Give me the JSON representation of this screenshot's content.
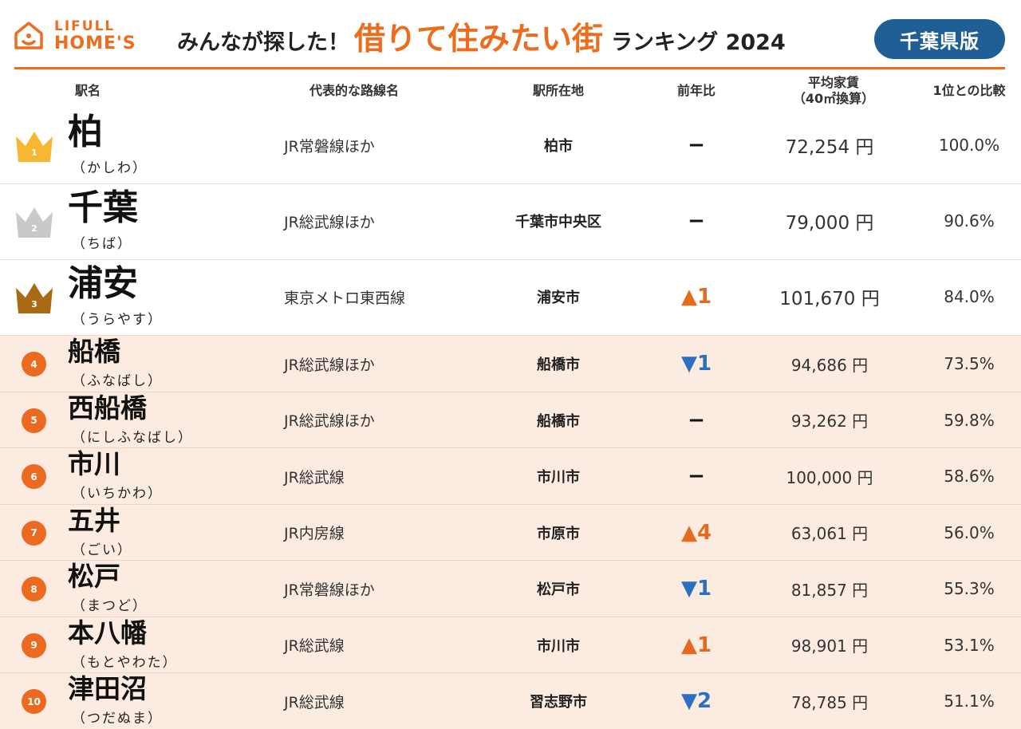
{
  "brand": {
    "top": "LIFULL",
    "bottom": "HOME'S"
  },
  "headline": {
    "pre": "みんなが探した！",
    "main": "借りて住みたい街",
    "post": "ランキング 2024"
  },
  "region": "千葉県版",
  "columns": {
    "station": "駅名",
    "line": "代表的な路線名",
    "location": "駅所在地",
    "yoy": "前年比",
    "rent_line1": "平均家賃",
    "rent_line2": "（40㎡換算）",
    "ratio": "1位との比較"
  },
  "colors": {
    "accent": "#ed6d1e",
    "pill": "#1f5f95",
    "up": "#e46a1d",
    "down": "#2c6fc2",
    "gold": "#f7b733",
    "silver": "#c9c9c9",
    "bronze": "#a86a12",
    "row_tint": "#fcebe1"
  },
  "rows": [
    {
      "rank": "1",
      "station": "柏",
      "reading": "（かしわ）",
      "line": "JR常磐線ほか",
      "location": "柏市",
      "yoy": "−",
      "yoy_dir": "flat",
      "rent": "72,254 円",
      "ratio": "100.0%"
    },
    {
      "rank": "2",
      "station": "千葉",
      "reading": "（ちば）",
      "line": "JR総武線ほか",
      "location": "千葉市中央区",
      "yoy": "−",
      "yoy_dir": "flat",
      "rent": "79,000 円",
      "ratio": "90.6%"
    },
    {
      "rank": "3",
      "station": "浦安",
      "reading": "（うらやす）",
      "line": "東京メトロ東西線",
      "location": "浦安市",
      "yoy": "▲1",
      "yoy_dir": "up",
      "rent": "101,670 円",
      "ratio": "84.0%"
    },
    {
      "rank": "4",
      "station": "船橋",
      "reading": "（ふなばし）",
      "line": "JR総武線ほか",
      "location": "船橋市",
      "yoy": "▼1",
      "yoy_dir": "down",
      "rent": "94,686 円",
      "ratio": "73.5%"
    },
    {
      "rank": "5",
      "station": "西船橋",
      "reading": "（にしふなばし）",
      "line": "JR総武線ほか",
      "location": "船橋市",
      "yoy": "−",
      "yoy_dir": "flat",
      "rent": "93,262 円",
      "ratio": "59.8%"
    },
    {
      "rank": "6",
      "station": "市川",
      "reading": "（いちかわ）",
      "line": "JR総武線",
      "location": "市川市",
      "yoy": "−",
      "yoy_dir": "flat",
      "rent": "100,000 円",
      "ratio": "58.6%"
    },
    {
      "rank": "7",
      "station": "五井",
      "reading": "（ごい）",
      "line": "JR内房線",
      "location": "市原市",
      "yoy": "▲4",
      "yoy_dir": "up",
      "rent": "63,061 円",
      "ratio": "56.0%"
    },
    {
      "rank": "8",
      "station": "松戸",
      "reading": "（まつど）",
      "line": "JR常磐線ほか",
      "location": "松戸市",
      "yoy": "▼1",
      "yoy_dir": "down",
      "rent": "81,857 円",
      "ratio": "55.3%"
    },
    {
      "rank": "9",
      "station": "本八幡",
      "reading": "（もとやわた）",
      "line": "JR総武線",
      "location": "市川市",
      "yoy": "▲1",
      "yoy_dir": "up",
      "rent": "98,901 円",
      "ratio": "53.1%"
    },
    {
      "rank": "10",
      "station": "津田沼",
      "reading": "（つだぬま）",
      "line": "JR総武線",
      "location": "習志野市",
      "yoy": "▼2",
      "yoy_dir": "down",
      "rent": "78,785 円",
      "ratio": "51.1%"
    }
  ]
}
